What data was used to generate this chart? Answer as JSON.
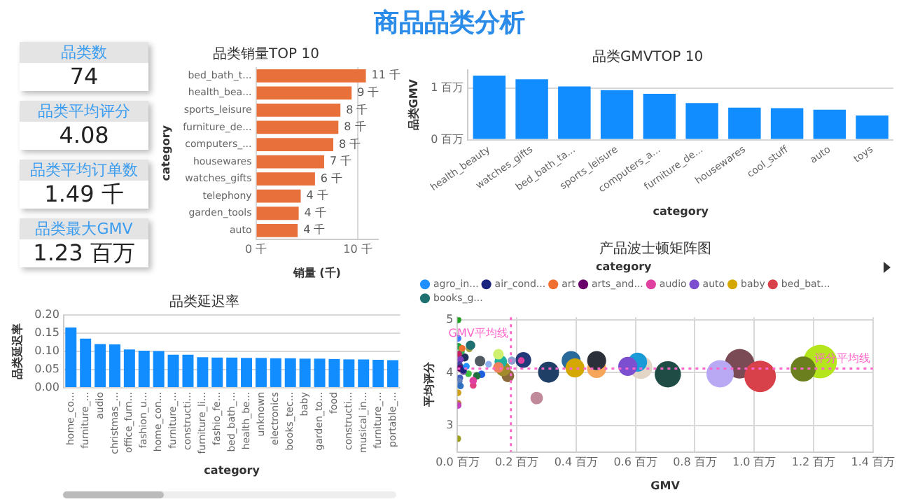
{
  "chart_data": [
    {
      "type": "other",
      "title": "商品品类分析",
      "annotations": [
        "品类数",
        "74",
        "品类平均评分",
        "4.08",
        "品类平均订单数",
        "1.49 千",
        "品类最大GMV",
        "1.23 百万"
      ]
    },
    {
      "type": "bar",
      "title": "品类销量TOP 10",
      "orientation": "horizontal",
      "xlabel": "销量 (千)",
      "ylabel": "category",
      "categories": [
        "bed_bath_t...",
        "health_bea...",
        "sports_leisure",
        "furniture_de...",
        "computers_...",
        "housewares",
        "watches_gifts",
        "telephony",
        "garden_tools",
        "auto"
      ],
      "values": [
        10.8,
        9.4,
        8.3,
        8.1,
        7.6,
        6.7,
        5.8,
        4.4,
        4.2,
        4.1
      ],
      "value_labels": [
        "11 千",
        "9 千",
        "8 千",
        "8 千",
        "8 千",
        "7 千",
        "6 千",
        "4 千",
        "4 千",
        "4 千"
      ],
      "color": "#e8703a",
      "xlim": [
        0,
        12
      ],
      "xticks": [
        {
          "value": 0,
          "label": "0 千"
        },
        {
          "value": 10,
          "label": "10 千"
        }
      ],
      "grid": "x"
    },
    {
      "type": "bar",
      "title": "品类GMVTOP 10",
      "xlabel": "category",
      "ylabel": "品类GMV",
      "categories": [
        "health_beauty",
        "watches_gifts",
        "bed_bath_ta...",
        "sports_leisure",
        "computers_a...",
        "furniture_de...",
        "housewares",
        "cool_stuff",
        "auto",
        "toys"
      ],
      "values": [
        1.24,
        1.17,
        1.03,
        0.96,
        0.89,
        0.71,
        0.62,
        0.61,
        0.58,
        0.47
      ],
      "color": "#118dff",
      "ylim": [
        0,
        1.35
      ],
      "yticks": [
        {
          "value": 0,
          "label": "0 百万"
        },
        {
          "value": 1,
          "label": "1 百万"
        }
      ],
      "grid": "y"
    },
    {
      "type": "bar",
      "title": "品类延迟率",
      "xlabel": "category",
      "ylabel": "品类延迟率",
      "categories": [
        "home_co...",
        "furniture_...",
        "audio",
        "christmas_...",
        "office_furn...",
        "fashion_u...",
        "home_con...",
        "furniture_...",
        "constructi...",
        "furniture_li...",
        "fashio_fe...",
        "bed_bath_...",
        "health_be...",
        "unknown",
        "electronics",
        "books_tec...",
        "baby",
        "garden_to...",
        "food",
        "constructi...",
        "musical_in...",
        "furniture_...",
        "portable_..."
      ],
      "values": [
        0.166,
        0.135,
        0.12,
        0.119,
        0.105,
        0.102,
        0.101,
        0.091,
        0.091,
        0.084,
        0.083,
        0.083,
        0.082,
        0.082,
        0.081,
        0.081,
        0.08,
        0.08,
        0.079,
        0.078,
        0.078,
        0.077,
        0.076
      ],
      "color": "#118dff",
      "ylim": [
        0,
        0.2
      ],
      "yticks": [
        {
          "value": 0,
          "label": "0.00"
        },
        {
          "value": 0.05,
          "label": "0.05"
        },
        {
          "value": 0.1,
          "label": "0.10"
        },
        {
          "value": 0.15,
          "label": "0.15"
        },
        {
          "value": 0.2,
          "label": "0.20"
        }
      ],
      "grid": "y"
    },
    {
      "type": "bubble",
      "title": "产品波士顿矩阵图",
      "xlabel": "GMV",
      "ylabel": "平均评分",
      "legend_title": "category",
      "legend": "top left",
      "grid": true,
      "xlim": [
        0,
        1.4
      ],
      "ylim": [
        2.5,
        5.05
      ],
      "xticks": [
        {
          "value": 0,
          "label": "0.0 百万"
        },
        {
          "value": 0.2,
          "label": "0.2 百万"
        },
        {
          "value": 0.4,
          "label": "0.4 百万"
        },
        {
          "value": 0.6,
          "label": "0.6 百万"
        },
        {
          "value": 0.8,
          "label": "0.8 百万"
        },
        {
          "value": 1,
          "label": "1.0 百万"
        },
        {
          "value": 1.2,
          "label": "1.2 百万"
        },
        {
          "value": 1.4,
          "label": "1.4 百万"
        }
      ],
      "yticks": [
        3,
        4,
        5
      ],
      "ref_lines": [
        {
          "axis": "x",
          "value": 0.18,
          "label": "GMV平均线",
          "color": "#ff66cc",
          "line_style": "dotted"
        },
        {
          "axis": "y",
          "value": 4.08,
          "label": "评分平均线",
          "color": "#ff66cc",
          "line_style": "dotted"
        }
      ],
      "series": [
        {
          "name": "agro_in...",
          "color": "#1e90ff",
          "x": [
            0.03
          ],
          "values": [
            4.12
          ],
          "sizes": [
            0.04
          ]
        },
        {
          "name": "air_cond...",
          "color": "#1a237e",
          "x": [
            0.02
          ],
          "values": [
            4.05
          ],
          "sizes": [
            0.04
          ]
        },
        {
          "name": "art",
          "color": "#f07030",
          "x": [
            0.016
          ],
          "values": [
            4.46
          ],
          "sizes": [
            0.04
          ]
        },
        {
          "name": "arts_and...",
          "color": "#6a006a",
          "x": [
            0.008
          ],
          "values": [
            4.08
          ],
          "sizes": [
            0.04
          ]
        },
        {
          "name": "audio",
          "color": "#e040a0",
          "x": [
            0.053
          ],
          "values": [
            3.85
          ],
          "sizes": [
            0.05
          ]
        },
        {
          "name": "auto",
          "color": "#7b4fd0",
          "x": [
            0.574
          ],
          "values": [
            4.12
          ],
          "sizes": [
            0.32
          ]
        },
        {
          "name": "baby",
          "color": "#d4a800",
          "x": [
            0.396
          ],
          "values": [
            4.09
          ],
          "sizes": [
            0.32
          ]
        },
        {
          "name": "bed_bat...",
          "color": "#d8404a",
          "x": [
            1.02
          ],
          "values": [
            3.93
          ],
          "sizes": [
            0.88
          ]
        },
        {
          "name": "books_g...",
          "color": "#1f7070",
          "x": [
            0.044
          ],
          "values": [
            4.52
          ],
          "sizes": [
            0.08
          ]
        },
        {
          "x": [
            1.222,
            1.165,
            0.951,
            0.885,
            0.709,
            0.618,
            0.607,
            0.469,
            0.469,
            0.383,
            0.307,
            0.267,
            0.222,
            0.215,
            0.183,
            0.17,
            0.154,
            0.146,
            0.138,
            0.138,
            0.076,
            0.105,
            0.081,
            0.065,
            0.053,
            0.037,
            0.024,
            0.013,
            0.04,
            0.002,
            0.002,
            0.003,
            0.004,
            0.01,
            0.006,
            0.008,
            0.006,
            0.01,
            0.002,
            0.002,
            0.002,
            0.001,
            0.012,
            0.02
          ],
          "values": [
            4.21,
            4.07,
            4.17,
            3.98,
            3.97,
            4.1,
            4.2,
            4.08,
            4.23,
            4.23,
            4.01,
            3.52,
            4.24,
            4.23,
            4.23,
            3.94,
            4.07,
            4.21,
            4.35,
            4.1,
            4.22,
            4.16,
            3.97,
            3.94,
            3.76,
            3.98,
            4.29,
            4.4,
            4.45,
            5,
            4.65,
            4.5,
            4.35,
            4.25,
            4.15,
            3.9,
            3.84,
            3.75,
            3.62,
            3.42,
            3.38,
            2.75,
            4.1,
            4.02
          ],
          "sizes": [
            1,
            0.56,
            0.77,
            0.66,
            0.61,
            0.47,
            0.32,
            0.32,
            0.32,
            0.32,
            0.39,
            0.14,
            0.22,
            0.04,
            0.06,
            0.14,
            0.19,
            0.14,
            0.1,
            0.1,
            0.1,
            0.04,
            0.05,
            0.05,
            0.04,
            0.04,
            0.06,
            0.04,
            0.04,
            0.04,
            0.04,
            0.04,
            0.04,
            0.04,
            0.04,
            0.04,
            0.04,
            0.04,
            0.04,
            0.04,
            0.04,
            0.04,
            0.04,
            0.04
          ],
          "colors": [
            "#b5e61d",
            "#6b7f1f",
            "#7a4a55",
            "#b9a9f5",
            "#1f4d46",
            "#e3d5c5",
            "#1a9ad6",
            "#f5a65b",
            "#2b2f3a",
            "#2a6a9a",
            "#1f3f66",
            "#c08a9a",
            "#233a7a",
            "#e040a0",
            "#8fa0d0",
            "#8a6a3a",
            "#a08a2a",
            "#20b0a0",
            "#d0f070",
            "#f08060",
            "#505a60",
            "#8fb0f0",
            "#2060e0",
            "#1f6f3f",
            "#e04080",
            "#40c040",
            "#1f2f5f",
            "#30b050",
            "#a0a040",
            "#20a020",
            "#4080ff",
            "#20a040",
            "#c02060",
            "#8040c0",
            "#4040a0",
            "#4060c0",
            "#6080c0",
            "#3070c0",
            "#d0a020",
            "#c08040",
            "#c040c0",
            "#a0a020",
            "#304080",
            "#7050a0"
          ]
        }
      ]
    }
  ]
}
